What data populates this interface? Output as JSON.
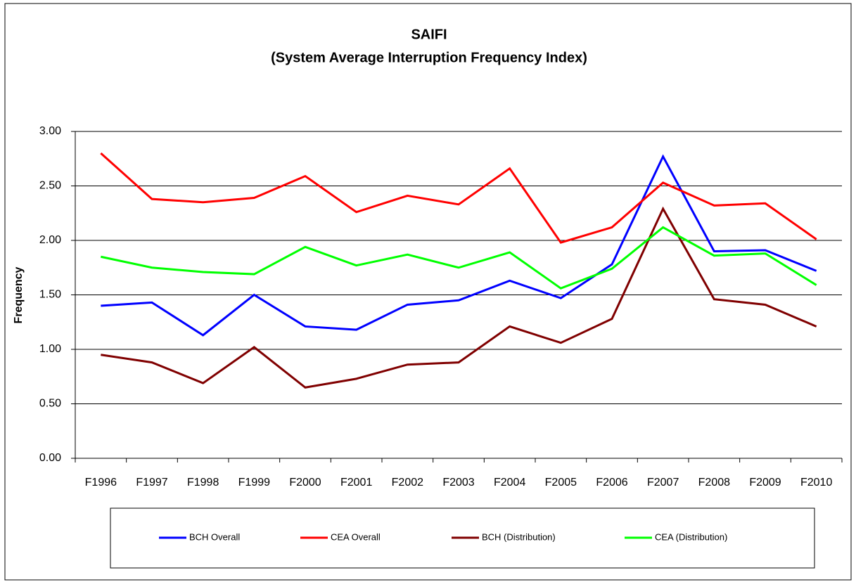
{
  "chart_data": {
    "type": "line",
    "title": "SAIFI",
    "subtitle": "(System Average Interruption Frequency Index)",
    "y_label": "Frequency",
    "categories": [
      "F1996",
      "F1997",
      "F1998",
      "F1999",
      "F2000",
      "F2001",
      "F2002",
      "F2003",
      "F2004",
      "F2005",
      "F2006",
      "F2007",
      "F2008",
      "F2009",
      "F2010"
    ],
    "series": [
      {
        "name": "BCH Overall",
        "color": "#0000ff",
        "values": [
          1.4,
          1.43,
          1.13,
          1.5,
          1.21,
          1.18,
          1.41,
          1.45,
          1.63,
          1.47,
          1.78,
          2.77,
          1.9,
          1.91,
          1.72
        ]
      },
      {
        "name": "CEA Overall",
        "color": "#ff0000",
        "values": [
          2.8,
          2.38,
          2.35,
          2.39,
          2.59,
          2.26,
          2.41,
          2.33,
          2.66,
          1.98,
          2.12,
          2.53,
          2.32,
          2.34,
          2.01
        ]
      },
      {
        "name": "BCH (Distribution)",
        "color": "#800000",
        "values": [
          0.95,
          0.88,
          0.69,
          1.02,
          0.65,
          0.73,
          0.86,
          0.88,
          1.21,
          1.06,
          1.28,
          2.29,
          1.46,
          1.41,
          1.21
        ]
      },
      {
        "name": "CEA (Distribution)",
        "color": "#00ff00",
        "values": [
          1.85,
          1.75,
          1.71,
          1.69,
          1.94,
          1.77,
          1.87,
          1.75,
          1.89,
          1.56,
          1.74,
          2.12,
          1.86,
          1.88,
          1.59
        ]
      }
    ],
    "ylim": [
      0,
      3
    ],
    "yticks": [
      {
        "value": 0,
        "label": "0.00"
      },
      {
        "value": 0.5,
        "label": "0.50"
      },
      {
        "value": 1,
        "label": "1.00"
      },
      {
        "value": 1.5,
        "label": "1.50"
      },
      {
        "value": 2,
        "label": "2.00"
      },
      {
        "value": 2.5,
        "label": "2.50"
      },
      {
        "value": 3,
        "label": "3.00"
      }
    ],
    "grid": true
  }
}
